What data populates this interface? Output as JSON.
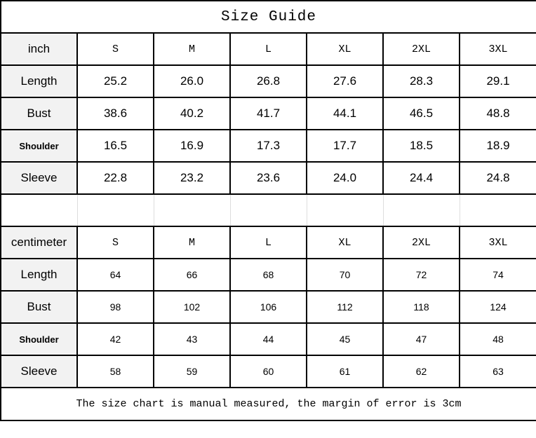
{
  "title": "Size Guide",
  "sizes": [
    "S",
    "M",
    "L",
    "XL",
    "2XL",
    "3XL"
  ],
  "inch": {
    "unit_label": "inch",
    "rows": [
      {
        "label": "Length",
        "values": [
          "25.2",
          "26.0",
          "26.8",
          "27.6",
          "28.3",
          "29.1"
        ]
      },
      {
        "label": "Bust",
        "values": [
          "38.6",
          "40.2",
          "41.7",
          "44.1",
          "46.5",
          "48.8"
        ]
      },
      {
        "label": "Shoulder",
        "values": [
          "16.5",
          "16.9",
          "17.3",
          "17.7",
          "18.5",
          "18.9"
        ]
      },
      {
        "label": "Sleeve",
        "values": [
          "22.8",
          "23.2",
          "23.6",
          "24.0",
          "24.4",
          "24.8"
        ]
      }
    ]
  },
  "cm": {
    "unit_label": "centimeter",
    "rows": [
      {
        "label": "Length",
        "values": [
          "64",
          "66",
          "68",
          "70",
          "72",
          "74"
        ]
      },
      {
        "label": "Bust",
        "values": [
          "98",
          "102",
          "106",
          "112",
          "118",
          "124"
        ]
      },
      {
        "label": "Shoulder",
        "values": [
          "42",
          "43",
          "44",
          "45",
          "47",
          "48"
        ]
      },
      {
        "label": "Sleeve",
        "values": [
          "58",
          "59",
          "60",
          "61",
          "62",
          "63"
        ]
      }
    ]
  },
  "footer": "The size chart is manual measured, the margin of error is 3cm"
}
